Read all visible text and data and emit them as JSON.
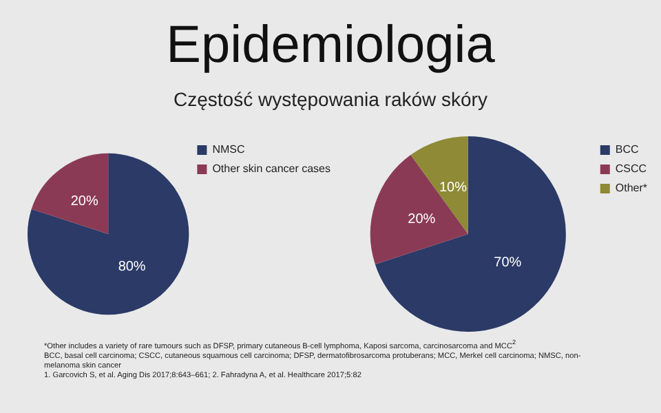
{
  "chart_data": [
    {
      "type": "pie",
      "title": "Epidemiologia",
      "subtitle": "Częstość występowania raków skóry",
      "categories": [
        "NMSC",
        "Other skin cancer cases"
      ],
      "values": [
        80,
        20
      ],
      "value_labels": [
        "80%",
        "20%"
      ],
      "colors": [
        "#2b3a67",
        "#8b3a55"
      ],
      "legend": "top right"
    },
    {
      "type": "pie",
      "categories": [
        "BCC",
        "CSCC",
        "Other*"
      ],
      "values": [
        70,
        20,
        10
      ],
      "value_labels": [
        "70%",
        "20%",
        "10%"
      ],
      "colors": [
        "#2b3a67",
        "#8b3a55",
        "#8e8a35"
      ],
      "legend": "top right",
      "annotations": [
        "*Other includes a variety of rare tumours such as DFSP, primary cutaneous B-cell lymphoma, Kaposi sarcoma, carcinosarcoma and MCC$^{2}$",
        "BCC, basal cell carcinoma; CSCC, cutaneous squamous cell carcinoma; DFSP, dermatofibrosarcoma protuberans; MCC, Merkel cell carcinoma; NMSC, non-melanoma skin cancer",
        "1. Garcovich S, et al. Aging Dis 2017;8:643–661; 2. Fahradyna A, et al. Healthcare 2017;5:82"
      ]
    }
  ]
}
